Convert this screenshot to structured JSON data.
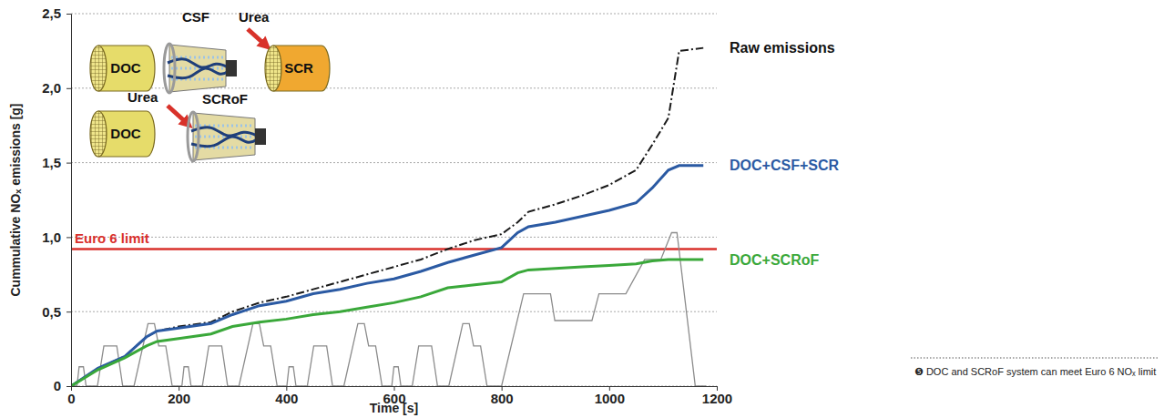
{
  "chart_data": {
    "type": "line",
    "x_label": "Time [s]",
    "y_label": "Cummulative NOₓ emissions [g]",
    "xlim": [
      0,
      1200
    ],
    "xticks": [
      0,
      200,
      400,
      600,
      800,
      1000,
      1200
    ],
    "ylim": [
      0,
      2.5
    ],
    "yticks": [
      0,
      {
        "value": 0.5,
        "label": "0,5"
      },
      {
        "value": 1.0,
        "label": "1,0"
      },
      {
        "value": 1.5,
        "label": "1,5"
      },
      {
        "value": 2.0,
        "label": "2,0"
      },
      {
        "value": 2.5,
        "label": "2,5"
      }
    ],
    "grid": true,
    "x": [
      0,
      50,
      100,
      140,
      160,
      200,
      260,
      300,
      350,
      400,
      450,
      500,
      550,
      600,
      650,
      700,
      750,
      800,
      830,
      850,
      900,
      950,
      1000,
      1050,
      1080,
      1110,
      1130,
      1175
    ],
    "series": [
      {
        "name": "Raw emissions",
        "color": "#1a1a1a",
        "line_style": "dashdot",
        "values": [
          0,
          0.12,
          0.2,
          0.33,
          0.37,
          0.4,
          0.43,
          0.5,
          0.56,
          0.6,
          0.65,
          0.7,
          0.75,
          0.8,
          0.85,
          0.92,
          0.98,
          1.02,
          1.1,
          1.17,
          1.22,
          1.28,
          1.35,
          1.45,
          1.62,
          1.8,
          2.25,
          2.27
        ]
      },
      {
        "name": "DOC+CSF+SCR",
        "color": "#2b5aa3",
        "line_style": "solid",
        "values": [
          0,
          0.12,
          0.2,
          0.33,
          0.37,
          0.39,
          0.42,
          0.48,
          0.54,
          0.57,
          0.62,
          0.65,
          0.69,
          0.72,
          0.77,
          0.83,
          0.88,
          0.93,
          1.03,
          1.07,
          1.1,
          1.14,
          1.18,
          1.23,
          1.33,
          1.45,
          1.48,
          1.48
        ]
      },
      {
        "name": "DOC+SCRoF",
        "color": "#3aa83a",
        "line_style": "solid",
        "values": [
          0,
          0.11,
          0.19,
          0.27,
          0.3,
          0.32,
          0.35,
          0.4,
          0.43,
          0.45,
          0.48,
          0.5,
          0.53,
          0.56,
          0.6,
          0.66,
          0.68,
          0.7,
          0.76,
          0.78,
          0.79,
          0.8,
          0.81,
          0.82,
          0.84,
          0.85,
          0.85,
          0.85
        ]
      },
      {
        "color": "#8c8c8c",
        "line_style": "solid",
        "x": [
          0,
          11,
          15,
          23,
          28,
          49,
          61,
          85,
          96,
          117,
          143,
          155,
          163,
          176,
          188,
          195,
          206,
          210,
          218,
          223,
          244,
          256,
          280,
          291,
          312,
          338,
          350,
          358,
          371,
          383,
          390,
          401,
          405,
          413,
          418,
          439,
          451,
          475,
          486,
          507,
          533,
          545,
          553,
          566,
          578,
          585,
          596,
          600,
          608,
          613,
          634,
          646,
          670,
          681,
          702,
          728,
          740,
          748,
          761,
          773,
          800,
          841,
          891,
          899,
          968,
          981,
          1031,
          1066,
          1096,
          1116,
          1126,
          1160,
          1180
        ],
        "values": [
          0,
          0,
          0.13,
          0.13,
          0,
          0,
          0.27,
          0.27,
          0,
          0,
          0.42,
          0.42,
          0.27,
          0.27,
          0,
          0,
          0,
          0.13,
          0.13,
          0,
          0,
          0.27,
          0.27,
          0,
          0,
          0.42,
          0.42,
          0.27,
          0.27,
          0,
          0,
          0,
          0.13,
          0.13,
          0,
          0,
          0.27,
          0.27,
          0,
          0,
          0.42,
          0.42,
          0.27,
          0.27,
          0,
          0,
          0,
          0.13,
          0.13,
          0,
          0,
          0.27,
          0.27,
          0,
          0,
          0.42,
          0.42,
          0.27,
          0.27,
          0,
          0,
          0.62,
          0.62,
          0.44,
          0.44,
          0.62,
          0.62,
          0.85,
          0.85,
          1.03,
          1.03,
          0,
          0
        ]
      }
    ],
    "reference_line": {
      "label": "Euro 6 limit",
      "value": 0.92,
      "color": "#d9302c"
    },
    "diagram": {
      "top": [
        "DOC",
        "CSF",
        "Urea",
        "SCR"
      ],
      "bottom": [
        "DOC",
        "Urea",
        "SCRoF"
      ]
    },
    "caption": "❺ DOC and SCRoF system can meet Euro 6 NOₓ limit"
  }
}
